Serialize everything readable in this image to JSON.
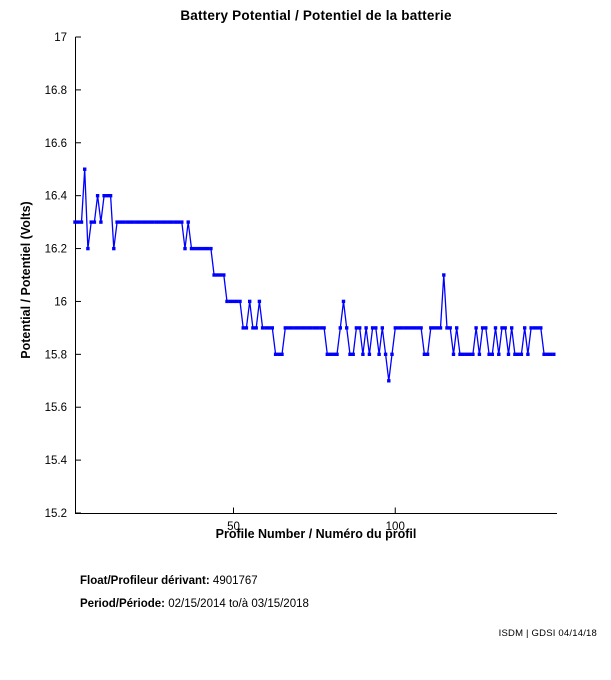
{
  "title": "Battery Potential / Potentiel de la batterie",
  "chart_data": {
    "type": "line",
    "title": "Battery Potential / Potentiel de la batterie",
    "xlabel": "Profile Number / Numéro du profil",
    "ylabel": "Potential / Potentiel (Volts)",
    "xlim": [
      1,
      150
    ],
    "ylim": [
      15.2,
      17
    ],
    "xtick_values": [
      50,
      100
    ],
    "xtick_labels": [
      "50",
      "100"
    ],
    "ytick_values": [
      17,
      16.8,
      16.6,
      16.4,
      16.2,
      16,
      15.8,
      15.6,
      15.4,
      15.2
    ],
    "ytick_labels": [
      "17",
      "16.8",
      "16.6",
      "16.4",
      "16.2",
      "16",
      "15.8",
      "15.6",
      "15.4",
      "15.2"
    ],
    "grid": false,
    "legend": "none",
    "line_color": "#0000FF",
    "marker": "square",
    "x": [
      1,
      2,
      3,
      4,
      5,
      6,
      7,
      8,
      9,
      10,
      11,
      12,
      13,
      14,
      15,
      16,
      17,
      18,
      19,
      20,
      21,
      22,
      23,
      24,
      25,
      26,
      27,
      28,
      29,
      30,
      31,
      32,
      33,
      34,
      35,
      36,
      37,
      38,
      39,
      40,
      41,
      42,
      43,
      44,
      45,
      46,
      47,
      48,
      49,
      50,
      51,
      52,
      53,
      54,
      55,
      56,
      57,
      58,
      59,
      60,
      61,
      62,
      63,
      64,
      65,
      66,
      67,
      68,
      69,
      70,
      71,
      72,
      73,
      74,
      75,
      76,
      77,
      78,
      79,
      80,
      81,
      82,
      83,
      84,
      85,
      86,
      87,
      88,
      89,
      90,
      91,
      92,
      93,
      94,
      95,
      96,
      97,
      98,
      99,
      100,
      101,
      102,
      103,
      104,
      105,
      106,
      107,
      108,
      109,
      110,
      111,
      112,
      113,
      114,
      115,
      116,
      117,
      118,
      119,
      120,
      121,
      122,
      123,
      124,
      125,
      126,
      127,
      128,
      129,
      130,
      131,
      132,
      133,
      134,
      135,
      136,
      137,
      138,
      139,
      140,
      141,
      142,
      143,
      144,
      145,
      146,
      147,
      148,
      149
    ],
    "y": [
      16.3,
      16.3,
      16.3,
      16.5,
      16.2,
      16.3,
      16.3,
      16.4,
      16.3,
      16.4,
      16.4,
      16.4,
      16.2,
      16.3,
      16.3,
      16.3,
      16.3,
      16.3,
      16.3,
      16.3,
      16.3,
      16.3,
      16.3,
      16.3,
      16.3,
      16.3,
      16.3,
      16.3,
      16.3,
      16.3,
      16.3,
      16.3,
      16.3,
      16.3,
      16.2,
      16.3,
      16.2,
      16.2,
      16.2,
      16.2,
      16.2,
      16.2,
      16.2,
      16.1,
      16.1,
      16.1,
      16.1,
      16.0,
      16.0,
      16.0,
      16.0,
      16.0,
      15.9,
      15.9,
      16.0,
      15.9,
      15.9,
      16.0,
      15.9,
      15.9,
      15.9,
      15.9,
      15.8,
      15.8,
      15.8,
      15.9,
      15.9,
      15.9,
      15.9,
      15.9,
      15.9,
      15.9,
      15.9,
      15.9,
      15.9,
      15.9,
      15.9,
      15.9,
      15.8,
      15.8,
      15.8,
      15.8,
      15.9,
      16.0,
      15.9,
      15.8,
      15.8,
      15.9,
      15.9,
      15.8,
      15.9,
      15.8,
      15.9,
      15.9,
      15.8,
      15.9,
      15.8,
      15.7,
      15.8,
      15.9,
      15.9,
      15.9,
      15.9,
      15.9,
      15.9,
      15.9,
      15.9,
      15.9,
      15.8,
      15.8,
      15.9,
      15.9,
      15.9,
      15.9,
      16.1,
      15.9,
      15.9,
      15.8,
      15.9,
      15.8,
      15.8,
      15.8,
      15.8,
      15.8,
      15.9,
      15.8,
      15.9,
      15.9,
      15.8,
      15.8,
      15.9,
      15.8,
      15.9,
      15.9,
      15.8,
      15.9,
      15.8,
      15.8,
      15.8,
      15.9,
      15.8,
      15.9,
      15.9,
      15.9,
      15.9,
      15.8,
      15.8,
      15.8,
      15.8
    ]
  },
  "footer": {
    "float_label": "Float/Profileur dérivant:",
    "float_value": "4901767",
    "period_label": "Period/Période:",
    "period_value": "02/15/2014 to/à 03/15/2018",
    "credit": "ISDM | GDSI 04/14/18"
  }
}
